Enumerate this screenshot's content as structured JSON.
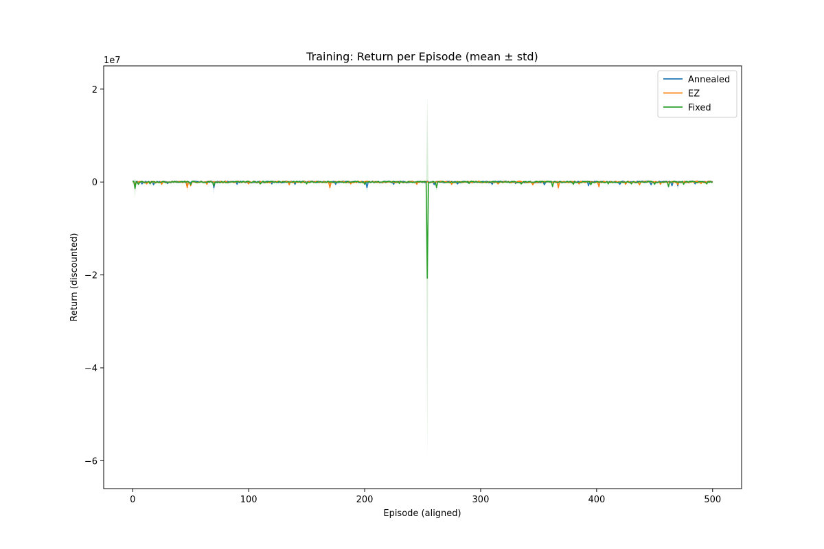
{
  "chart_data": {
    "type": "line",
    "title": "Training: Return per Episode (mean ± std)",
    "xlabel": "Episode (aligned)",
    "ylabel": "Return (discounted)",
    "y_multiplier_label": "1e7",
    "xlim": [
      -25,
      525
    ],
    "ylim": [
      -6.6,
      2.5
    ],
    "x_ticks": [
      0,
      100,
      200,
      300,
      400,
      500
    ],
    "x_tick_labels": [
      "0",
      "100",
      "200",
      "300",
      "400",
      "500"
    ],
    "y_ticks": [
      2,
      0,
      -2,
      -4,
      -6
    ],
    "y_tick_labels": [
      "2",
      "0",
      "−2",
      "−4",
      "−6"
    ],
    "grid": false,
    "legend_position": "top-right",
    "series": [
      {
        "name": "Annealed",
        "color": "#1f77b4",
        "spikes": [
          [
            2,
            -0.08
          ],
          [
            8,
            -0.04
          ],
          [
            18,
            -0.06
          ],
          [
            30,
            -0.03
          ],
          [
            47,
            -0.1
          ],
          [
            70,
            -0.12
          ],
          [
            90,
            -0.05
          ],
          [
            120,
            -0.04
          ],
          [
            140,
            -0.05
          ],
          [
            175,
            -0.05
          ],
          [
            202,
            -0.12
          ],
          [
            225,
            -0.05
          ],
          [
            260,
            -0.06
          ],
          [
            280,
            -0.04
          ],
          [
            310,
            -0.05
          ],
          [
            330,
            -0.03
          ],
          [
            355,
            -0.06
          ],
          [
            393,
            -0.08
          ],
          [
            420,
            -0.05
          ],
          [
            447,
            -0.06
          ],
          [
            465,
            -0.08
          ],
          [
            470,
            -0.08
          ],
          [
            485,
            -0.04
          ]
        ],
        "band": [
          [
            70,
            0.15
          ],
          [
            202,
            0.1
          ],
          [
            470,
            0.1
          ]
        ]
      },
      {
        "name": "EZ",
        "color": "#ff7f0e",
        "spikes": [
          [
            2,
            -0.05
          ],
          [
            12,
            -0.04
          ],
          [
            25,
            -0.05
          ],
          [
            47,
            -0.12
          ],
          [
            50,
            -0.08
          ],
          [
            64,
            -0.05
          ],
          [
            100,
            -0.04
          ],
          [
            135,
            -0.06
          ],
          [
            170,
            -0.12
          ],
          [
            188,
            -0.04
          ],
          [
            245,
            -0.05
          ],
          [
            275,
            -0.05
          ],
          [
            315,
            -0.04
          ],
          [
            345,
            -0.06
          ],
          [
            367,
            -0.12
          ],
          [
            385,
            -0.04
          ],
          [
            402,
            -0.1
          ],
          [
            425,
            -0.05
          ],
          [
            437,
            -0.06
          ],
          [
            455,
            -0.05
          ],
          [
            470,
            -0.06
          ],
          [
            490,
            -0.03
          ]
        ],
        "band": [
          [
            47,
            0.12
          ],
          [
            170,
            0.1
          ],
          [
            367,
            0.1
          ]
        ]
      },
      {
        "name": "Fixed",
        "color": "#2ca02c",
        "spikes": [
          [
            2,
            -0.14
          ],
          [
            5,
            -0.05
          ],
          [
            15,
            -0.04
          ],
          [
            50,
            -0.06
          ],
          [
            70,
            -0.08
          ],
          [
            110,
            -0.04
          ],
          [
            150,
            -0.04
          ],
          [
            200,
            -0.05
          ],
          [
            230,
            -0.03
          ],
          [
            254,
            -2.07
          ],
          [
            262,
            -0.12
          ],
          [
            290,
            -0.03
          ],
          [
            335,
            -0.04
          ],
          [
            362,
            -0.1
          ],
          [
            380,
            -0.05
          ],
          [
            395,
            -0.06
          ],
          [
            410,
            -0.04
          ],
          [
            430,
            -0.04
          ],
          [
            450,
            -0.05
          ],
          [
            462,
            -0.1
          ],
          [
            475,
            -0.05
          ],
          [
            495,
            -0.04
          ]
        ],
        "band": [
          [
            2,
            0.2
          ],
          [
            70,
            0.1
          ],
          [
            254,
            3.95
          ],
          [
            262,
            0.1
          ]
        ]
      }
    ]
  }
}
